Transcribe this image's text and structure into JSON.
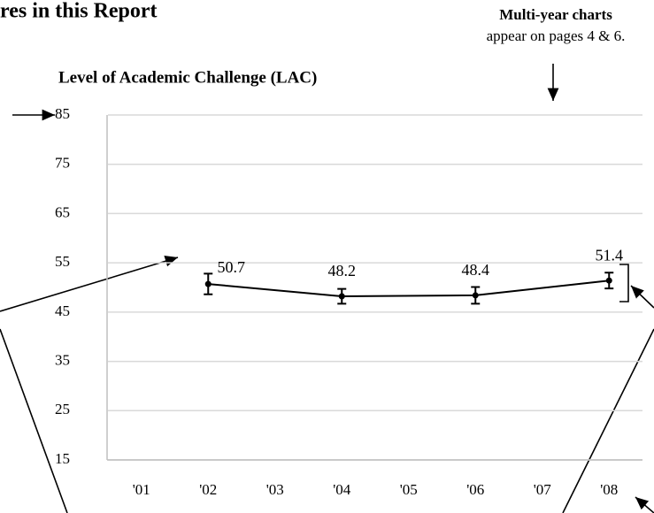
{
  "header_title": "res in this Report",
  "note": {
    "title": "Multi-year charts",
    "text": "appear on pages 4 & 6."
  },
  "chart_data": {
    "type": "line",
    "title": "Level of Academic Challenge (LAC)",
    "categories": [
      "'01",
      "'02",
      "'03",
      "'04",
      "'05",
      "'06",
      "'07",
      "'08"
    ],
    "series": [
      {
        "x": [
          "'02",
          "'04",
          "'06",
          "'08"
        ],
        "values": [
          50.7,
          48.2,
          48.4,
          51.4
        ],
        "errors": [
          2.1,
          1.5,
          1.7,
          1.6
        ],
        "color": "#000000"
      }
    ],
    "ylim": [
      15,
      85
    ],
    "yticks": [
      15,
      25,
      35,
      45,
      55,
      65,
      75,
      85
    ],
    "grid": true
  }
}
